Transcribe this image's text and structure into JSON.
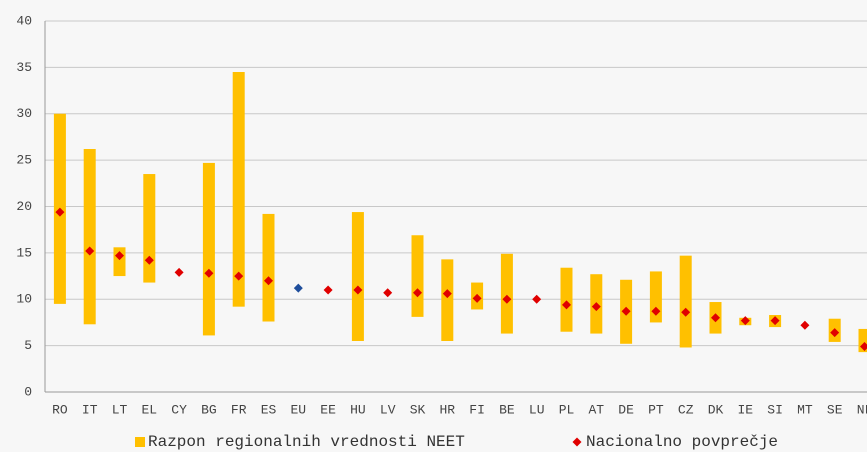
{
  "chart_data": {
    "type": "range",
    "categories": [
      "RO",
      "IT",
      "LT",
      "EL",
      "CY",
      "BG",
      "FR",
      "ES",
      "EU",
      "EE",
      "HU",
      "LV",
      "SK",
      "HR",
      "FI",
      "BE",
      "LU",
      "PL",
      "AT",
      "DE",
      "PT",
      "CZ",
      "DK",
      "IE",
      "SI",
      "MT",
      "SE",
      "NL"
    ],
    "series": [
      {
        "name": "Razpon regionalnih vrednosti NEET",
        "color": "#ffc000",
        "low": [
          9.5,
          7.3,
          12.5,
          11.8,
          null,
          6.1,
          9.2,
          7.6,
          null,
          null,
          5.5,
          null,
          8.1,
          5.5,
          8.9,
          6.3,
          null,
          6.5,
          6.3,
          5.2,
          7.5,
          4.8,
          6.3,
          7.2,
          7.0,
          null,
          5.4,
          4.3
        ],
        "high": [
          30.0,
          26.2,
          15.6,
          23.5,
          null,
          24.7,
          34.5,
          19.2,
          null,
          null,
          19.4,
          null,
          16.9,
          14.3,
          11.8,
          14.9,
          null,
          13.4,
          12.7,
          12.1,
          13.0,
          14.7,
          9.7,
          8.0,
          8.3,
          null,
          7.9,
          6.8
        ]
      },
      {
        "name": "Nacionalno povprečje",
        "color": "#e00000",
        "values": [
          19.4,
          15.2,
          14.7,
          14.2,
          12.9,
          12.8,
          12.5,
          12.0,
          11.2,
          11.0,
          11.0,
          10.7,
          10.7,
          10.6,
          10.1,
          10.0,
          10.0,
          9.4,
          9.2,
          8.7,
          8.7,
          8.6,
          8.0,
          7.7,
          7.7,
          7.2,
          6.4,
          4.9
        ],
        "colors": [
          "#e00000",
          "#e00000",
          "#e00000",
          "#e00000",
          "#e00000",
          "#e00000",
          "#e00000",
          "#e00000",
          "#1f4e9c",
          "#e00000",
          "#e00000",
          "#e00000",
          "#e00000",
          "#e00000",
          "#e00000",
          "#e00000",
          "#e00000",
          "#e00000",
          "#e00000",
          "#e00000",
          "#e00000",
          "#e00000",
          "#e00000",
          "#e00000",
          "#e00000",
          "#e00000",
          "#e00000",
          "#e00000"
        ]
      }
    ],
    "ylim": [
      0,
      40
    ],
    "yticks": [
      0,
      5,
      10,
      15,
      20,
      25,
      30,
      35,
      40
    ],
    "grid": true,
    "legend": "bottom"
  }
}
